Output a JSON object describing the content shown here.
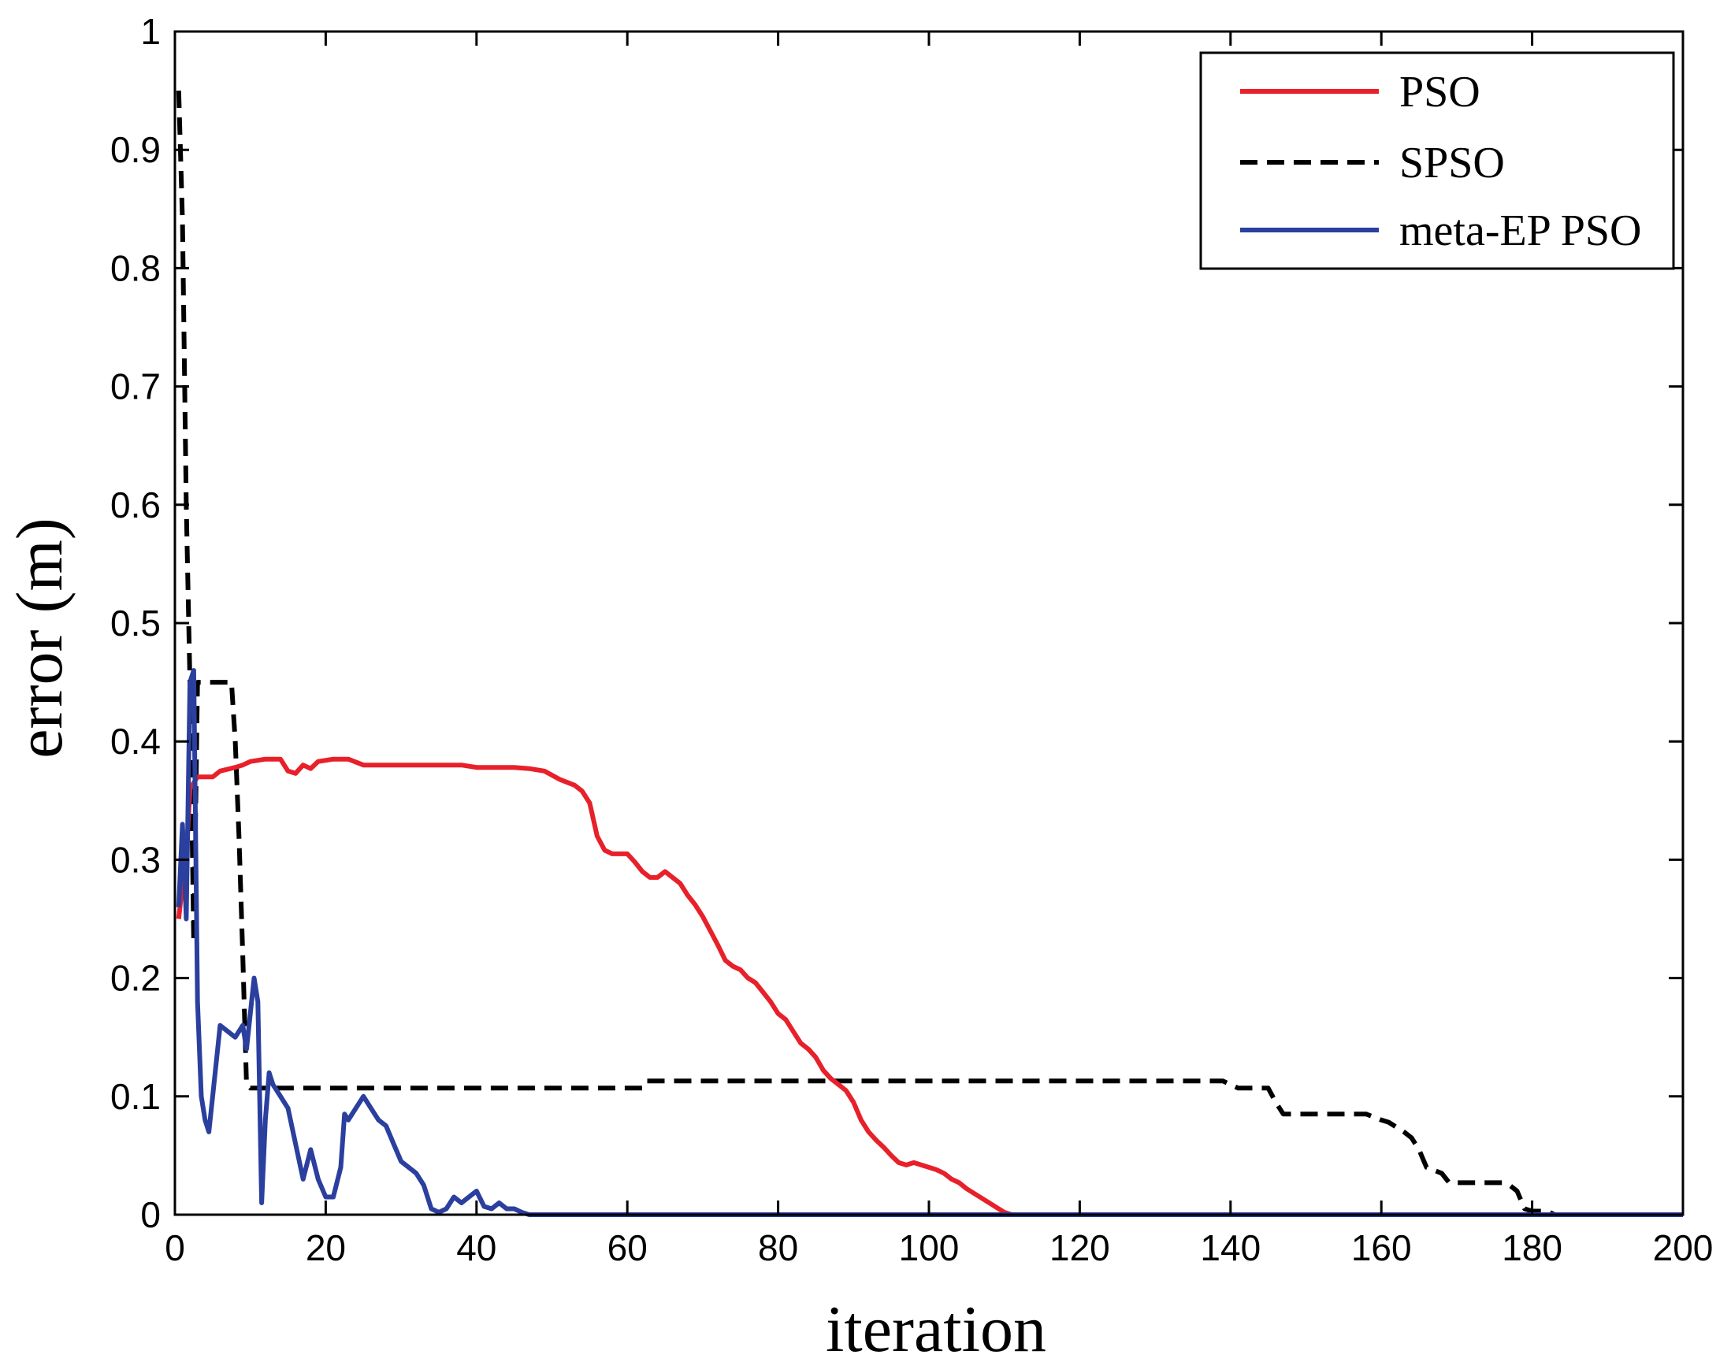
{
  "chart_data": {
    "type": "line",
    "title": "",
    "xlabel": "iteration",
    "ylabel": "error  (m)",
    "xlim": [
      0,
      200
    ],
    "ylim": [
      0,
      1
    ],
    "xticks": [
      0,
      20,
      40,
      60,
      80,
      100,
      120,
      140,
      160,
      180,
      200
    ],
    "yticks": [
      0,
      0.1,
      0.2,
      0.3,
      0.4,
      0.5,
      0.6,
      0.7,
      0.8,
      0.9,
      1
    ],
    "grid": false,
    "legend_position": "top-right",
    "series": [
      {
        "name": "PSO",
        "color": "#e8202a",
        "dash": "solid",
        "points": [
          [
            0.5,
            0.25
          ],
          [
            1,
            0.28
          ],
          [
            1.5,
            0.3
          ],
          [
            2,
            0.36
          ],
          [
            3,
            0.37
          ],
          [
            5,
            0.37
          ],
          [
            6,
            0.375
          ],
          [
            8,
            0.378
          ],
          [
            9,
            0.38
          ],
          [
            10,
            0.383
          ],
          [
            12,
            0.385
          ],
          [
            14,
            0.385
          ],
          [
            15,
            0.375
          ],
          [
            16,
            0.373
          ],
          [
            17,
            0.38
          ],
          [
            18,
            0.377
          ],
          [
            19,
            0.383
          ],
          [
            21,
            0.385
          ],
          [
            23,
            0.385
          ],
          [
            25,
            0.38
          ],
          [
            30,
            0.38
          ],
          [
            35,
            0.38
          ],
          [
            38,
            0.38
          ],
          [
            40,
            0.378
          ],
          [
            45,
            0.378
          ],
          [
            47,
            0.377
          ],
          [
            49,
            0.375
          ],
          [
            51,
            0.368
          ],
          [
            53,
            0.363
          ],
          [
            54,
            0.358
          ],
          [
            55,
            0.348
          ],
          [
            56,
            0.32
          ],
          [
            57,
            0.308
          ],
          [
            58,
            0.305
          ],
          [
            60,
            0.305
          ],
          [
            61,
            0.298
          ],
          [
            62,
            0.29
          ],
          [
            63,
            0.285
          ],
          [
            64,
            0.285
          ],
          [
            65,
            0.29
          ],
          [
            66,
            0.285
          ],
          [
            67,
            0.28
          ],
          [
            68,
            0.27
          ],
          [
            69,
            0.262
          ],
          [
            70,
            0.252
          ],
          [
            71,
            0.24
          ],
          [
            72,
            0.228
          ],
          [
            73,
            0.215
          ],
          [
            74,
            0.21
          ],
          [
            75,
            0.207
          ],
          [
            76,
            0.2
          ],
          [
            77,
            0.196
          ],
          [
            78,
            0.188
          ],
          [
            79,
            0.18
          ],
          [
            80,
            0.17
          ],
          [
            81,
            0.165
          ],
          [
            82,
            0.155
          ],
          [
            83,
            0.145
          ],
          [
            84,
            0.14
          ],
          [
            85,
            0.133
          ],
          [
            86,
            0.122
          ],
          [
            87,
            0.115
          ],
          [
            88,
            0.11
          ],
          [
            89,
            0.105
          ],
          [
            90,
            0.095
          ],
          [
            91,
            0.08
          ],
          [
            92,
            0.07
          ],
          [
            93,
            0.063
          ],
          [
            94,
            0.057
          ],
          [
            95,
            0.05
          ],
          [
            96,
            0.044
          ],
          [
            97,
            0.042
          ],
          [
            98,
            0.044
          ],
          [
            99,
            0.042
          ],
          [
            100,
            0.04
          ],
          [
            101,
            0.038
          ],
          [
            102,
            0.035
          ],
          [
            103,
            0.03
          ],
          [
            104,
            0.027
          ],
          [
            105,
            0.022
          ],
          [
            106,
            0.018
          ],
          [
            107,
            0.014
          ],
          [
            108,
            0.01
          ],
          [
            109,
            0.006
          ],
          [
            110,
            0.002
          ],
          [
            111,
            0
          ],
          [
            200,
            0
          ]
        ]
      },
      {
        "name": "SPSO",
        "color": "#000000",
        "dash": "dashed",
        "points": [
          [
            0.5,
            0.95
          ],
          [
            1,
            0.84
          ],
          [
            1.5,
            0.6
          ],
          [
            2,
            0.45
          ],
          [
            2.5,
            0.23
          ],
          [
            3,
            0.45
          ],
          [
            7.5,
            0.45
          ],
          [
            8,
            0.4
          ],
          [
            8.5,
            0.32
          ],
          [
            9,
            0.22
          ],
          [
            9.5,
            0.11
          ],
          [
            10,
            0.107
          ],
          [
            62,
            0.107
          ],
          [
            62.5,
            0.113
          ],
          [
            139,
            0.113
          ],
          [
            140,
            0.11
          ],
          [
            141,
            0.107
          ],
          [
            145,
            0.107
          ],
          [
            146,
            0.095
          ],
          [
            147,
            0.085
          ],
          [
            158,
            0.085
          ],
          [
            160,
            0.08
          ],
          [
            161,
            0.078
          ],
          [
            163,
            0.07
          ],
          [
            164,
            0.065
          ],
          [
            165,
            0.055
          ],
          [
            166,
            0.04
          ],
          [
            168,
            0.035
          ],
          [
            169,
            0.027
          ],
          [
            176,
            0.027
          ],
          [
            177,
            0.025
          ],
          [
            178,
            0.02
          ],
          [
            179,
            0.005
          ],
          [
            180,
            0.003
          ],
          [
            182,
            0.003
          ],
          [
            183,
            0
          ],
          [
            200,
            0
          ]
        ]
      },
      {
        "name": "meta-EP PSO",
        "color": "#2b3f9e",
        "dash": "solid",
        "points": [
          [
            0.5,
            0.26
          ],
          [
            1,
            0.33
          ],
          [
            1.5,
            0.25
          ],
          [
            2,
            0.45
          ],
          [
            2.5,
            0.46
          ],
          [
            3,
            0.18
          ],
          [
            3.5,
            0.1
          ],
          [
            4,
            0.08
          ],
          [
            4.5,
            0.07
          ],
          [
            5,
            0.1
          ],
          [
            6,
            0.16
          ],
          [
            7,
            0.155
          ],
          [
            8,
            0.15
          ],
          [
            9,
            0.16
          ],
          [
            9.5,
            0.14
          ],
          [
            10,
            0.17
          ],
          [
            10.5,
            0.2
          ],
          [
            11,
            0.18
          ],
          [
            11.5,
            0.01
          ],
          [
            12,
            0.08
          ],
          [
            12.5,
            0.12
          ],
          [
            13,
            0.11
          ],
          [
            14,
            0.1
          ],
          [
            15,
            0.09
          ],
          [
            16,
            0.06
          ],
          [
            17,
            0.03
          ],
          [
            18,
            0.055
          ],
          [
            19,
            0.03
          ],
          [
            20,
            0.015
          ],
          [
            21,
            0.015
          ],
          [
            22,
            0.04
          ],
          [
            22.5,
            0.085
          ],
          [
            23,
            0.08
          ],
          [
            24,
            0.09
          ],
          [
            25,
            0.1
          ],
          [
            26,
            0.09
          ],
          [
            27,
            0.08
          ],
          [
            28,
            0.075
          ],
          [
            29,
            0.06
          ],
          [
            30,
            0.045
          ],
          [
            31,
            0.04
          ],
          [
            32,
            0.035
          ],
          [
            33,
            0.025
          ],
          [
            34,
            0.005
          ],
          [
            35,
            0.002
          ],
          [
            36,
            0.005
          ],
          [
            37,
            0.015
          ],
          [
            38,
            0.01
          ],
          [
            39,
            0.015
          ],
          [
            40,
            0.02
          ],
          [
            41,
            0.007
          ],
          [
            42,
            0.005
          ],
          [
            43,
            0.01
          ],
          [
            44,
            0.005
          ],
          [
            45,
            0.005
          ],
          [
            46,
            0.002
          ],
          [
            47,
            0.0
          ],
          [
            200,
            0
          ]
        ]
      }
    ]
  }
}
